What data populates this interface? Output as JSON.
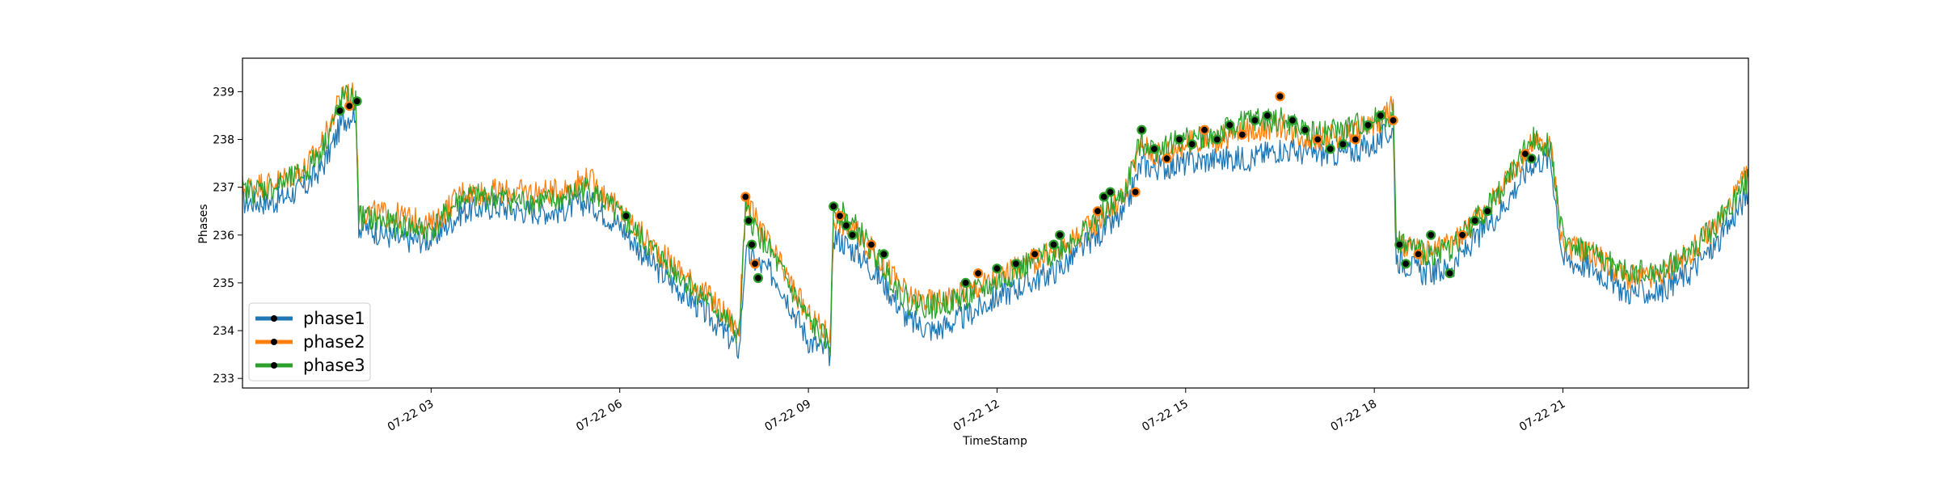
{
  "chart_data": {
    "type": "line",
    "title": "",
    "xlabel": "TimeStamp",
    "ylabel": "Phases",
    "x_ticks": [
      "07-22 03",
      "07-22 06",
      "07-22 09",
      "07-22 12",
      "07-22 15",
      "07-22 18",
      "07-22 21"
    ],
    "x_range_hours": [
      0.0,
      23.95
    ],
    "y_ticks": [
      "233",
      "234",
      "235",
      "236",
      "237",
      "238",
      "239"
    ],
    "ylim": [
      232.8,
      239.7
    ],
    "grid": false,
    "legend_position": "lower-left",
    "x_unit": "hours after 07-22 00:00",
    "series": [
      {
        "name": "phase1",
        "color": "#1f77b4",
        "x": [
          0.0,
          0.5,
          1.0,
          1.3,
          1.6,
          1.8,
          1.85,
          2.5,
          3.0,
          3.5,
          4.0,
          4.5,
          5.0,
          5.5,
          6.0,
          6.5,
          7.0,
          7.5,
          7.9,
          8.0,
          8.5,
          9.0,
          9.35,
          9.4,
          9.8,
          10.2,
          10.6,
          11.0,
          11.5,
          12.0,
          12.5,
          13.0,
          13.5,
          14.0,
          14.3,
          14.5,
          15.0,
          15.5,
          16.0,
          16.5,
          17.0,
          17.5,
          18.0,
          18.3,
          18.35,
          18.8,
          19.2,
          19.6,
          20.0,
          20.5,
          20.8,
          21.0,
          21.5,
          22.0,
          22.5,
          23.0,
          23.5,
          23.95
        ],
        "values": [
          236.7,
          236.7,
          237.0,
          237.5,
          238.4,
          238.6,
          236.2,
          235.9,
          235.9,
          236.5,
          236.6,
          236.5,
          236.5,
          236.7,
          236.2,
          235.4,
          234.8,
          234.2,
          233.6,
          235.6,
          235.1,
          233.8,
          233.5,
          236.0,
          235.6,
          235.0,
          234.2,
          234.0,
          234.3,
          234.7,
          235.0,
          235.3,
          235.9,
          236.4,
          237.5,
          237.4,
          237.5,
          237.6,
          237.6,
          237.8,
          237.7,
          237.7,
          237.9,
          238.2,
          235.5,
          235.2,
          235.3,
          235.9,
          236.5,
          237.5,
          237.6,
          235.5,
          235.3,
          234.8,
          234.8,
          235.2,
          235.9,
          236.9
        ]
      },
      {
        "name": "phase2",
        "color": "#ff7f0e",
        "x": [
          0.0,
          0.5,
          1.0,
          1.3,
          1.6,
          1.8,
          1.85,
          2.5,
          3.0,
          3.5,
          4.0,
          4.5,
          5.0,
          5.5,
          6.0,
          6.5,
          7.0,
          7.5,
          7.9,
          8.0,
          8.5,
          9.0,
          9.35,
          9.4,
          9.8,
          10.2,
          10.6,
          11.0,
          11.5,
          12.0,
          12.5,
          13.0,
          13.5,
          14.0,
          14.3,
          14.5,
          15.0,
          15.5,
          16.0,
          16.5,
          17.0,
          17.5,
          18.0,
          18.3,
          18.35,
          18.8,
          19.2,
          19.6,
          20.0,
          20.5,
          20.8,
          21.0,
          21.5,
          22.0,
          22.5,
          23.0,
          23.5,
          23.95
        ],
        "values": [
          237.0,
          237.1,
          237.4,
          238.0,
          239.0,
          238.9,
          236.5,
          236.4,
          236.2,
          236.9,
          236.9,
          236.9,
          236.9,
          237.2,
          236.5,
          235.8,
          235.2,
          234.6,
          234.0,
          236.7,
          235.5,
          234.3,
          233.9,
          236.4,
          236.0,
          235.4,
          234.7,
          234.6,
          234.8,
          235.1,
          235.4,
          235.7,
          236.2,
          236.8,
          237.9,
          237.7,
          237.9,
          238.0,
          238.2,
          238.3,
          238.0,
          238.1,
          238.3,
          238.7,
          235.8,
          235.6,
          235.8,
          236.3,
          236.9,
          237.9,
          237.9,
          235.8,
          235.6,
          235.1,
          235.1,
          235.6,
          236.3,
          237.3
        ]
      },
      {
        "name": "phase3",
        "color": "#2ca02c",
        "x": [
          0.0,
          0.5,
          1.0,
          1.3,
          1.6,
          1.8,
          1.85,
          2.5,
          3.0,
          3.5,
          4.0,
          4.5,
          5.0,
          5.5,
          6.0,
          6.5,
          7.0,
          7.5,
          7.9,
          8.0,
          8.5,
          9.0,
          9.35,
          9.4,
          9.8,
          10.2,
          10.6,
          11.0,
          11.5,
          12.0,
          12.5,
          13.0,
          13.5,
          14.0,
          14.3,
          14.5,
          15.0,
          15.5,
          16.0,
          16.5,
          17.0,
          17.5,
          18.0,
          18.3,
          18.35,
          18.8,
          19.2,
          19.6,
          20.0,
          20.5,
          20.8,
          21.0,
          21.5,
          22.0,
          22.5,
          23.0,
          23.5,
          23.95
        ],
        "values": [
          236.9,
          237.0,
          237.3,
          237.9,
          238.9,
          238.8,
          236.4,
          236.2,
          236.1,
          236.8,
          236.8,
          236.7,
          236.7,
          237.0,
          236.4,
          235.7,
          235.1,
          234.5,
          233.9,
          236.5,
          235.4,
          234.2,
          233.7,
          236.6,
          236.1,
          235.3,
          234.6,
          234.5,
          234.7,
          235.0,
          235.4,
          235.7,
          236.2,
          236.8,
          238.0,
          237.8,
          238.0,
          238.1,
          238.4,
          238.4,
          238.1,
          238.2,
          238.4,
          238.5,
          235.9,
          235.6,
          235.7,
          236.3,
          236.9,
          238.0,
          237.9,
          235.9,
          235.6,
          235.2,
          235.2,
          235.6,
          236.3,
          237.2
        ]
      }
    ],
    "anomaly_markers": {
      "color": "#000000",
      "points": [
        {
          "x": 1.55,
          "y": 238.6
        },
        {
          "x": 1.7,
          "y": 238.7
        },
        {
          "x": 1.82,
          "y": 238.8
        },
        {
          "x": 6.1,
          "y": 236.4
        },
        {
          "x": 8.0,
          "y": 236.8
        },
        {
          "x": 8.05,
          "y": 236.3
        },
        {
          "x": 8.1,
          "y": 235.8
        },
        {
          "x": 8.15,
          "y": 235.4
        },
        {
          "x": 8.2,
          "y": 235.1
        },
        {
          "x": 9.4,
          "y": 236.6
        },
        {
          "x": 9.5,
          "y": 236.4
        },
        {
          "x": 9.6,
          "y": 236.2
        },
        {
          "x": 9.7,
          "y": 236.0
        },
        {
          "x": 10.0,
          "y": 235.8
        },
        {
          "x": 10.2,
          "y": 235.6
        },
        {
          "x": 11.5,
          "y": 235.0
        },
        {
          "x": 11.7,
          "y": 235.2
        },
        {
          "x": 12.0,
          "y": 235.3
        },
        {
          "x": 12.3,
          "y": 235.4
        },
        {
          "x": 12.6,
          "y": 235.6
        },
        {
          "x": 12.9,
          "y": 235.8
        },
        {
          "x": 13.0,
          "y": 236.0
        },
        {
          "x": 13.6,
          "y": 236.5
        },
        {
          "x": 13.7,
          "y": 236.8
        },
        {
          "x": 13.8,
          "y": 236.9
        },
        {
          "x": 14.2,
          "y": 236.9
        },
        {
          "x": 14.3,
          "y": 238.2
        },
        {
          "x": 14.5,
          "y": 237.8
        },
        {
          "x": 14.7,
          "y": 237.6
        },
        {
          "x": 14.9,
          "y": 238.0
        },
        {
          "x": 15.1,
          "y": 237.9
        },
        {
          "x": 15.3,
          "y": 238.2
        },
        {
          "x": 15.5,
          "y": 238.0
        },
        {
          "x": 15.7,
          "y": 238.3
        },
        {
          "x": 15.9,
          "y": 238.1
        },
        {
          "x": 16.1,
          "y": 238.4
        },
        {
          "x": 16.3,
          "y": 238.5
        },
        {
          "x": 16.5,
          "y": 238.9
        },
        {
          "x": 16.7,
          "y": 238.4
        },
        {
          "x": 16.9,
          "y": 238.2
        },
        {
          "x": 17.1,
          "y": 238.0
        },
        {
          "x": 17.3,
          "y": 237.8
        },
        {
          "x": 17.5,
          "y": 237.9
        },
        {
          "x": 17.7,
          "y": 238.0
        },
        {
          "x": 17.9,
          "y": 238.3
        },
        {
          "x": 18.1,
          "y": 238.5
        },
        {
          "x": 18.3,
          "y": 238.4
        },
        {
          "x": 18.4,
          "y": 235.8
        },
        {
          "x": 18.5,
          "y": 235.4
        },
        {
          "x": 18.7,
          "y": 235.6
        },
        {
          "x": 18.9,
          "y": 236.0
        },
        {
          "x": 19.2,
          "y": 235.2
        },
        {
          "x": 19.4,
          "y": 236.0
        },
        {
          "x": 19.6,
          "y": 236.3
        },
        {
          "x": 19.8,
          "y": 236.5
        },
        {
          "x": 20.4,
          "y": 237.7
        },
        {
          "x": 20.5,
          "y": 237.6
        }
      ]
    }
  }
}
